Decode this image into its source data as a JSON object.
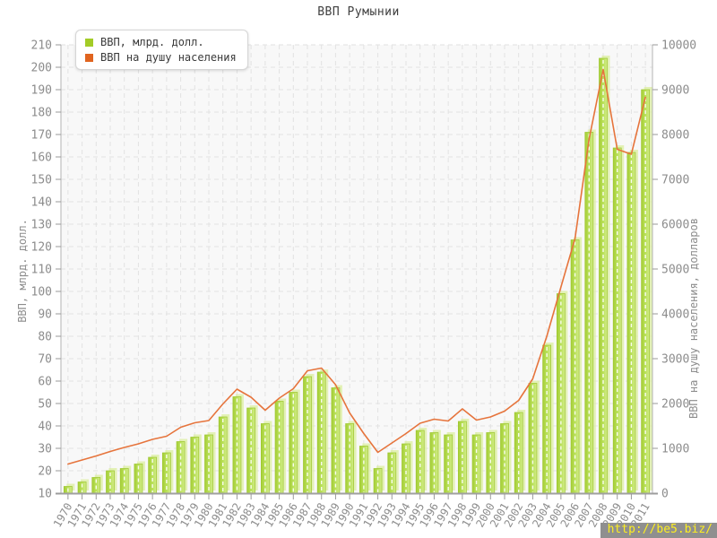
{
  "page": {
    "title": "ВВП Румынии",
    "watermark": "http://be5.biz/"
  },
  "legend": {
    "items": [
      {
        "label": "ВВП, млрд. долл.",
        "color": "#a3cc27",
        "marker": "bar-swatch"
      },
      {
        "label": "ВВП на душу населения",
        "color": "#e0641f",
        "marker": "line-swatch"
      }
    ]
  },
  "chart_data": {
    "type": "bar+line",
    "title": "ВВП Румынии",
    "categories": [
      1970,
      1971,
      1972,
      1973,
      1974,
      1975,
      1976,
      1977,
      1978,
      1979,
      1980,
      1981,
      1982,
      1983,
      1984,
      1985,
      1986,
      1987,
      1988,
      1989,
      1990,
      1991,
      1992,
      1993,
      1994,
      1995,
      1996,
      1997,
      1998,
      1999,
      2000,
      2001,
      2002,
      2003,
      2004,
      2005,
      2006,
      2007,
      2008,
      2009,
      2010,
      2011
    ],
    "series": [
      {
        "name": "ВВП, млрд. долл.",
        "type": "bar",
        "axis": "left",
        "color": "#b8dd50",
        "values": [
          13,
          15,
          17,
          20,
          21,
          23,
          26,
          28,
          33,
          35,
          36,
          44,
          53,
          48,
          41,
          51,
          55,
          62,
          64,
          57,
          41,
          31,
          21,
          28,
          32,
          38,
          37,
          36,
          42,
          36,
          37,
          41,
          46,
          59,
          76,
          99,
          123,
          171,
          204,
          164,
          162,
          190
        ]
      },
      {
        "name": "ВВП на душу населения",
        "type": "line",
        "axis": "right",
        "color": "#e6743c",
        "values": [
          650,
          740,
          830,
          930,
          1020,
          1100,
          1200,
          1270,
          1470,
          1570,
          1620,
          1990,
          2320,
          2140,
          1850,
          2120,
          2330,
          2730,
          2790,
          2420,
          1790,
          1330,
          910,
          1120,
          1330,
          1560,
          1650,
          1610,
          1880,
          1630,
          1700,
          1830,
          2070,
          2550,
          3500,
          4600,
          5680,
          7900,
          9450,
          7670,
          7560,
          8830
        ]
      }
    ],
    "axes": {
      "left": {
        "label": "ВВП, млрд. долл.",
        "min": 10,
        "max": 210,
        "step": 10
      },
      "right": {
        "label": "ВВП на душу населения, долларов",
        "min": 0,
        "max": 10000,
        "step": 1000
      }
    },
    "grid": true,
    "legend_position": "top-left",
    "colors": {
      "plot_background": "#f8f8f8",
      "gridline": "#e2e2e2",
      "axis_line": "#b3b3b3",
      "bottom_axis_line": "#a0a0a0",
      "tick": "#999999",
      "tick_label": "#8c8c8c",
      "bar_fill_left": "#a5ce36",
      "bar_fill_mid": "#bce25e",
      "bar_fill_right": "#d3ec8b",
      "bar_stroke": "#9fc730",
      "bar_shadow": "#ddefa5",
      "line": "#e6743c"
    }
  }
}
